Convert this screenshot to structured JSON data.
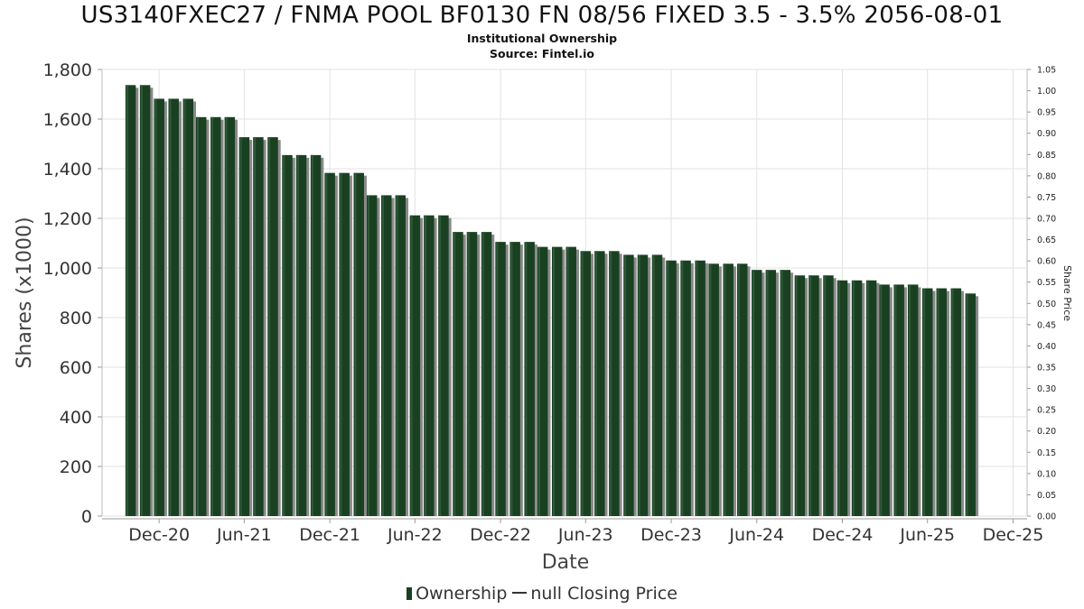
{
  "header": {
    "title": "US3140FXEC27 / FNMA POOL BF0130 FN 08/56 FIXED 3.5 - 3.5% 2056-08-01",
    "subtitle": "Institutional Ownership",
    "source": "Source: Fintel.io"
  },
  "legend": {
    "ownership": "Ownership",
    "closing_price": "null Closing Price"
  },
  "colors": {
    "bar": "#1a4022",
    "bar_shadow": "#8a8a8a",
    "grid": "#e2e2e2",
    "axis": "#999999"
  },
  "chart_data": {
    "type": "bar",
    "title": "US3140FXEC27 / FNMA POOL BF0130 FN 08/56 FIXED 3.5 - 3.5% 2056-08-01",
    "subtitle": "Institutional Ownership",
    "xlabel": "Date",
    "ylabel": "Shares (x1000)",
    "y2label": "Share Price",
    "ylim": [
      0,
      1800
    ],
    "y2lim": [
      0,
      1.05
    ],
    "xlim": [
      "2020-08-01",
      "2025-12-31"
    ],
    "y_ticks": [
      0,
      200,
      400,
      600,
      800,
      1000,
      1200,
      1400,
      1600,
      1800
    ],
    "y_tick_labels": [
      "0",
      "200",
      "400",
      "600",
      "800",
      "1,000",
      "1,200",
      "1,400",
      "1,600",
      "1,800"
    ],
    "y2_ticks": [
      "0.00",
      "0.05",
      "0.10",
      "0.15",
      "0.20",
      "0.25",
      "0.30",
      "0.35",
      "0.40",
      "0.45",
      "0.50",
      "0.55",
      "0.60",
      "0.65",
      "0.70",
      "0.75",
      "0.80",
      "0.85",
      "0.90",
      "0.95",
      "1.00",
      "1.05"
    ],
    "x_ticks": [
      {
        "date": "2020-12-01",
        "label": "Dec-20"
      },
      {
        "date": "2021-06-01",
        "label": "Jun-21"
      },
      {
        "date": "2021-12-01",
        "label": "Dec-21"
      },
      {
        "date": "2022-06-01",
        "label": "Jun-22"
      },
      {
        "date": "2022-12-01",
        "label": "Dec-22"
      },
      {
        "date": "2023-06-01",
        "label": "Jun-23"
      },
      {
        "date": "2023-12-01",
        "label": "Dec-23"
      },
      {
        "date": "2024-06-01",
        "label": "Jun-24"
      },
      {
        "date": "2024-12-01",
        "label": "Dec-24"
      },
      {
        "date": "2025-06-01",
        "label": "Jun-25"
      },
      {
        "date": "2025-12-01",
        "label": "Dec-25"
      }
    ],
    "grid": true,
    "legend_position": "bottom",
    "series": [
      {
        "name": "Ownership",
        "dates": [
          "2020-10-01",
          "2020-11-01",
          "2020-12-01",
          "2021-01-01",
          "2021-02-01",
          "2021-03-01",
          "2021-04-01",
          "2021-05-01",
          "2021-06-01",
          "2021-07-01",
          "2021-08-01",
          "2021-09-01",
          "2021-10-01",
          "2021-11-01",
          "2021-12-01",
          "2022-01-01",
          "2022-02-01",
          "2022-03-01",
          "2022-04-01",
          "2022-05-01",
          "2022-06-01",
          "2022-07-01",
          "2022-08-01",
          "2022-09-01",
          "2022-10-01",
          "2022-11-01",
          "2022-12-01",
          "2023-01-01",
          "2023-02-01",
          "2023-03-01",
          "2023-04-01",
          "2023-05-01",
          "2023-06-01",
          "2023-07-01",
          "2023-08-01",
          "2023-09-01",
          "2023-10-01",
          "2023-11-01",
          "2023-12-01",
          "2024-01-01",
          "2024-02-01",
          "2024-03-01",
          "2024-04-01",
          "2024-05-01",
          "2024-06-01",
          "2024-07-01",
          "2024-08-01",
          "2024-09-01",
          "2024-10-01",
          "2024-11-01",
          "2024-12-01",
          "2025-01-01",
          "2025-02-01",
          "2025-03-01",
          "2025-04-01",
          "2025-05-01",
          "2025-06-01",
          "2025-07-01",
          "2025-08-01",
          "2025-09-01"
        ],
        "values": [
          1737,
          1737,
          1682,
          1682,
          1682,
          1608,
          1608,
          1608,
          1527,
          1527,
          1527,
          1455,
          1455,
          1455,
          1383,
          1383,
          1383,
          1293,
          1293,
          1293,
          1212,
          1212,
          1212,
          1145,
          1145,
          1145,
          1105,
          1105,
          1105,
          1085,
          1085,
          1085,
          1068,
          1068,
          1068,
          1053,
          1053,
          1053,
          1030,
          1030,
          1030,
          1017,
          1017,
          1017,
          992,
          992,
          992,
          970,
          970,
          970,
          950,
          950,
          950,
          933,
          933,
          933,
          918,
          918,
          918,
          897
        ]
      }
    ]
  }
}
